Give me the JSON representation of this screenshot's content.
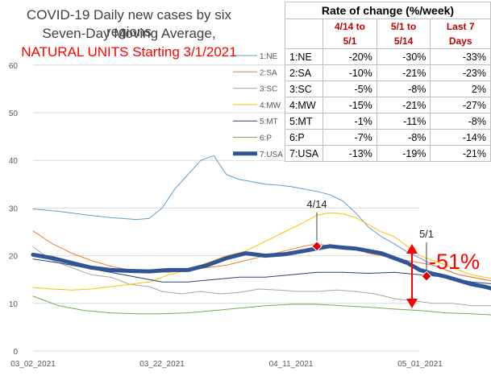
{
  "title": {
    "line1": "COVID-19 Daily new cases by six regions",
    "line2": "Seven-Day Moving Average,",
    "line3": "NATURAL UNITS Starting 3/1/2021"
  },
  "chart_data": {
    "type": "line",
    "x_ticks": [
      "03_02_2021",
      "03_22_2021",
      "04_11_2021",
      "05_01_2021"
    ],
    "y_ticks": [
      "0",
      "10",
      "20",
      "30",
      "40",
      "50",
      "60"
    ],
    "ylim": [
      0,
      60
    ],
    "xlim": [
      "03_02_2021",
      "05_24_2021"
    ],
    "grid": "horizontal",
    "legend": "right",
    "series": [
      {
        "name": "1:NE",
        "color": "#5b9bd5",
        "width": 1,
        "points": [
          [
            0,
            29.8
          ],
          [
            4,
            29.3
          ],
          [
            8,
            28.6
          ],
          [
            12,
            28.0
          ],
          [
            16,
            27.6
          ],
          [
            18,
            27.8
          ],
          [
            20,
            30
          ],
          [
            22,
            34
          ],
          [
            24,
            37
          ],
          [
            26,
            40
          ],
          [
            28,
            41
          ],
          [
            30,
            37
          ],
          [
            32,
            36
          ],
          [
            34,
            35.5
          ],
          [
            36,
            35
          ],
          [
            38,
            34.8
          ],
          [
            40,
            34.5
          ],
          [
            42,
            34
          ],
          [
            44,
            33.5
          ],
          [
            46,
            32.8
          ],
          [
            48,
            31.5
          ],
          [
            50,
            29
          ],
          [
            52,
            26
          ],
          [
            54,
            24
          ],
          [
            56,
            22.5
          ],
          [
            58,
            20.8
          ],
          [
            60,
            19.5
          ],
          [
            62,
            18
          ],
          [
            64,
            17
          ],
          [
            66,
            16
          ],
          [
            68,
            15.5
          ],
          [
            70,
            15
          ],
          [
            72,
            14.5
          ],
          [
            74,
            14
          ],
          [
            76,
            13.8
          ],
          [
            78,
            13.5
          ]
        ]
      },
      {
        "name": "2:SA",
        "color": "#ed7d31",
        "width": 1,
        "points": [
          [
            0,
            25.2
          ],
          [
            3,
            22.5
          ],
          [
            6,
            20.5
          ],
          [
            9,
            19
          ],
          [
            12,
            17.8
          ],
          [
            15,
            17
          ],
          [
            18,
            16.8
          ],
          [
            21,
            16.5
          ],
          [
            24,
            17
          ],
          [
            27,
            17.5
          ],
          [
            30,
            18
          ],
          [
            33,
            19
          ],
          [
            36,
            20
          ],
          [
            39,
            21
          ],
          [
            42,
            22
          ],
          [
            44,
            22.5
          ],
          [
            46,
            22
          ],
          [
            48,
            21.8
          ],
          [
            50,
            21.5
          ],
          [
            52,
            20.5
          ],
          [
            54,
            20
          ],
          [
            56,
            19.5
          ],
          [
            58,
            19
          ],
          [
            60,
            18.5
          ],
          [
            62,
            18
          ],
          [
            64,
            17
          ],
          [
            66,
            16
          ],
          [
            68,
            15.5
          ],
          [
            70,
            15
          ],
          [
            72,
            14.5
          ],
          [
            74,
            14
          ],
          [
            76,
            13.8
          ],
          [
            78,
            13.5
          ]
        ]
      },
      {
        "name": "3:SC",
        "color": "#a5a5a5",
        "width": 1,
        "points": [
          [
            0,
            21.8
          ],
          [
            3,
            19
          ],
          [
            6,
            17.5
          ],
          [
            9,
            16
          ],
          [
            12,
            15.5
          ],
          [
            15,
            14
          ],
          [
            18,
            13.5
          ],
          [
            20,
            12.5
          ],
          [
            23,
            12
          ],
          [
            26,
            12.5
          ],
          [
            29,
            12
          ],
          [
            32,
            12.3
          ],
          [
            35,
            13
          ],
          [
            38,
            12.8
          ],
          [
            41,
            12.5
          ],
          [
            44,
            12.5
          ],
          [
            47,
            12.8
          ],
          [
            50,
            12.5
          ],
          [
            53,
            12
          ],
          [
            56,
            11
          ],
          [
            59,
            10.5
          ],
          [
            62,
            10
          ],
          [
            65,
            10
          ],
          [
            68,
            9.5
          ],
          [
            71,
            9.5
          ],
          [
            74,
            9.3
          ],
          [
            76,
            9
          ],
          [
            77,
            9.5
          ],
          [
            78,
            10.2
          ]
        ]
      },
      {
        "name": "4:MW",
        "color": "#ffc000",
        "width": 1,
        "points": [
          [
            0,
            13.3
          ],
          [
            3,
            13
          ],
          [
            6,
            12.8
          ],
          [
            9,
            13
          ],
          [
            12,
            13.5
          ],
          [
            15,
            14
          ],
          [
            18,
            14.5
          ],
          [
            21,
            16
          ],
          [
            24,
            17
          ],
          [
            27,
            18.5
          ],
          [
            30,
            20
          ],
          [
            33,
            21
          ],
          [
            36,
            23
          ],
          [
            39,
            25
          ],
          [
            42,
            27
          ],
          [
            44,
            28.5
          ],
          [
            46,
            29
          ],
          [
            48,
            28.8
          ],
          [
            50,
            28
          ],
          [
            52,
            26.5
          ],
          [
            54,
            25
          ],
          [
            56,
            24
          ],
          [
            58,
            22
          ],
          [
            60,
            20
          ],
          [
            62,
            19
          ],
          [
            64,
            18
          ],
          [
            66,
            17
          ],
          [
            68,
            16
          ],
          [
            70,
            15.5
          ],
          [
            72,
            15
          ],
          [
            74,
            14
          ],
          [
            76,
            13.5
          ],
          [
            78,
            12.3
          ]
        ]
      },
      {
        "name": "5:MT",
        "color": "#264478",
        "width": 1,
        "points": [
          [
            0,
            19.3
          ],
          [
            4,
            18.5
          ],
          [
            8,
            17.5
          ],
          [
            12,
            16.5
          ],
          [
            16,
            15.5
          ],
          [
            20,
            14.5
          ],
          [
            24,
            14.5
          ],
          [
            28,
            15
          ],
          [
            32,
            15.5
          ],
          [
            36,
            15.5
          ],
          [
            40,
            16
          ],
          [
            44,
            16.5
          ],
          [
            48,
            16.5
          ],
          [
            52,
            16.3
          ],
          [
            56,
            16.5
          ],
          [
            60,
            16
          ],
          [
            64,
            15.5
          ],
          [
            68,
            14.5
          ],
          [
            72,
            14
          ],
          [
            76,
            13.5
          ],
          [
            78,
            13.4
          ]
        ]
      },
      {
        "name": "6:P",
        "color": "#70ad47",
        "width": 1,
        "points": [
          [
            0,
            11.5
          ],
          [
            4,
            9.5
          ],
          [
            8,
            8.5
          ],
          [
            12,
            8
          ],
          [
            16,
            7.8
          ],
          [
            20,
            7.8
          ],
          [
            24,
            8
          ],
          [
            28,
            8.5
          ],
          [
            32,
            9
          ],
          [
            36,
            9.5
          ],
          [
            40,
            9.8
          ],
          [
            44,
            9.8
          ],
          [
            48,
            9.5
          ],
          [
            52,
            9.2
          ],
          [
            56,
            8.8
          ],
          [
            60,
            8.5
          ],
          [
            64,
            8
          ],
          [
            68,
            7.8
          ],
          [
            72,
            7.5
          ],
          [
            76,
            7
          ],
          [
            78,
            7
          ]
        ]
      },
      {
        "name": "7:USA",
        "color": "#2f5597",
        "width": 5,
        "points": [
          [
            0,
            20.2
          ],
          [
            3,
            19.5
          ],
          [
            6,
            18.5
          ],
          [
            9,
            17.5
          ],
          [
            12,
            17
          ],
          [
            15,
            16.8
          ],
          [
            18,
            16.7
          ],
          [
            21,
            17
          ],
          [
            24,
            17
          ],
          [
            27,
            18
          ],
          [
            30,
            19.5
          ],
          [
            33,
            20.5
          ],
          [
            36,
            20
          ],
          [
            39,
            20.3
          ],
          [
            42,
            21
          ],
          [
            44,
            21.5
          ],
          [
            46,
            22
          ],
          [
            48,
            21.7
          ],
          [
            50,
            21.5
          ],
          [
            52,
            21
          ],
          [
            54,
            20.5
          ],
          [
            56,
            19.5
          ],
          [
            58,
            18.5
          ],
          [
            60,
            17
          ],
          [
            62,
            16.2
          ],
          [
            64,
            15.6
          ],
          [
            66,
            14.8
          ],
          [
            68,
            14
          ],
          [
            70,
            13.5
          ],
          [
            72,
            12.8
          ],
          [
            74,
            12
          ],
          [
            76,
            11.2
          ],
          [
            78,
            10.5
          ]
        ]
      }
    ],
    "markers": [
      {
        "label": "4/14",
        "x": 44,
        "y": 22
      },
      {
        "label": "5/1",
        "x": 61,
        "y": 15.7
      }
    ]
  },
  "annotation": {
    "pct": "-51%"
  },
  "rate_table": {
    "caption": "Rate of change (%/week)",
    "headers": [
      "",
      "4/14 to 5/1",
      "5/1  to 5/14",
      "Last 7 Days"
    ],
    "rows": [
      [
        "1:NE",
        "-20%",
        "-30%",
        "-33%"
      ],
      [
        "2:SA",
        "-10%",
        "-21%",
        "-23%"
      ],
      [
        "3:SC",
        "-5%",
        "-8%",
        "2%"
      ],
      [
        "4:MW",
        "-15%",
        "-21%",
        "-27%"
      ],
      [
        "5:MT",
        "-1%",
        "-11%",
        "-8%"
      ],
      [
        "6:P",
        "-7%",
        "-8%",
        "-14%"
      ],
      [
        "7:USA",
        "-13%",
        "-19%",
        "-21%"
      ]
    ]
  }
}
